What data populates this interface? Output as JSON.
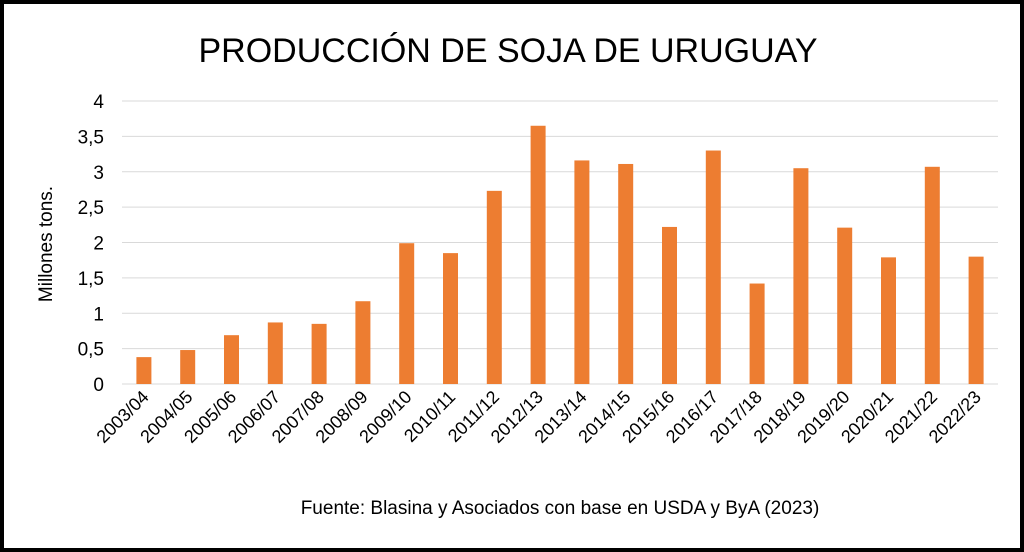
{
  "chart_data": {
    "type": "bar",
    "title": "PRODUCCIÓN DE SOJA DE URUGUAY",
    "ylabel": "Millones tons.",
    "xlabel": "",
    "source": "Fuente: Blasina y Asociados con base en USDA y ByA (2023)",
    "categories": [
      "2003/04",
      "2004/05",
      "2005/06",
      "2006/07",
      "2007/08",
      "2008/09",
      "2009/10",
      "2010/11",
      "2011/12",
      "2012/13",
      "2013/14",
      "2014/15",
      "2015/16",
      "2016/17",
      "2017/18",
      "2018/19",
      "2019/20",
      "2020/21",
      "2021/22",
      "2022/23"
    ],
    "values": [
      0.38,
      0.48,
      0.69,
      0.87,
      0.85,
      1.17,
      1.99,
      1.85,
      2.73,
      3.65,
      3.16,
      3.11,
      2.22,
      3.3,
      1.42,
      3.05,
      2.21,
      1.79,
      3.07,
      1.8
    ],
    "ylim": [
      0,
      4
    ],
    "yticks": [
      0,
      0.5,
      1,
      1.5,
      2,
      2.5,
      3,
      3.5,
      4
    ],
    "ytick_labels": [
      "0",
      "0,5",
      "1",
      "1,5",
      "2",
      "2,5",
      "3",
      "3,5",
      "4"
    ],
    "grid": true,
    "bar_color": "#ed7d31"
  }
}
